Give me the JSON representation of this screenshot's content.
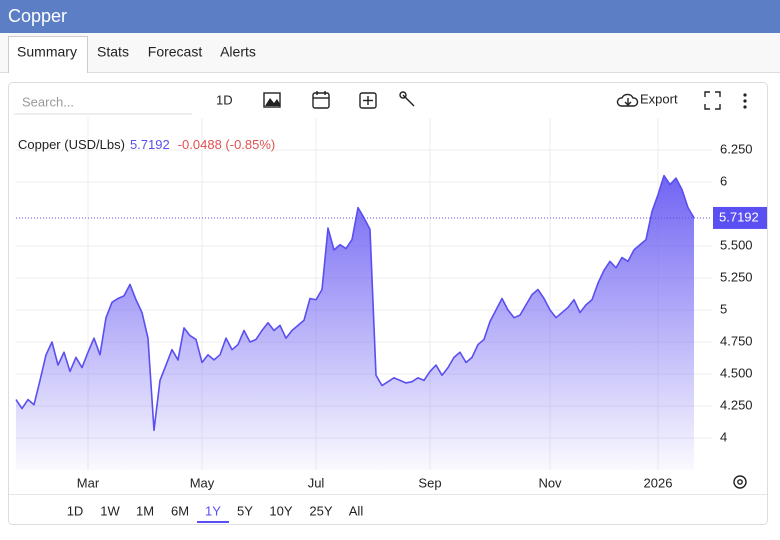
{
  "header": {
    "title": "Copper"
  },
  "tabs": [
    "Summary",
    "Stats",
    "Forecast",
    "Alerts"
  ],
  "active_tab": 0,
  "toolbar": {
    "search_placeholder": "Search...",
    "interval": "1D",
    "export": "Export"
  },
  "ranges": [
    "1D",
    "1W",
    "1M",
    "6M",
    "1Y",
    "5Y",
    "10Y",
    "25Y",
    "All"
  ],
  "active_range": 4,
  "chart_data": {
    "type": "area",
    "change_label": "-0.0488 (-0.85%)",
    "change_color": "#e05252",
    "categories": [
      null,
      null,
      null,
      null,
      null,
      null,
      null,
      null,
      null,
      null,
      null,
      null,
      "Mar",
      null,
      null,
      null,
      null,
      null,
      null,
      null,
      null,
      null,
      null,
      null,
      null,
      null,
      null,
      null,
      null,
      null,
      null,
      "May",
      null,
      null,
      null,
      null,
      null,
      null,
      null,
      null,
      null,
      null,
      null,
      null,
      null,
      null,
      null,
      null,
      null,
      null,
      "Jul",
      null,
      null,
      null,
      null,
      null,
      null,
      null,
      null,
      null,
      null,
      null,
      null,
      null,
      null,
      null,
      null,
      null,
      null,
      "Sep",
      null,
      null,
      null,
      null,
      null,
      null,
      null,
      null,
      null,
      null,
      null,
      null,
      null,
      null,
      null,
      null,
      null,
      null,
      null,
      "Nov",
      null,
      null,
      null,
      null,
      null,
      null,
      null,
      null,
      null,
      null,
      null,
      null,
      null,
      null,
      null,
      null,
      null,
      "2026",
      null,
      null,
      null,
      null,
      null,
      null
    ],
    "series": [
      {
        "name": "Copper (USD/Lbs)",
        "color": "#5a4ff0",
        "values": [
          4.3,
          4.23,
          4.3,
          4.26,
          4.45,
          4.65,
          4.75,
          4.57,
          4.67,
          4.52,
          4.63,
          4.55,
          4.67,
          4.78,
          4.65,
          4.94,
          5.06,
          5.09,
          5.11,
          5.2,
          5.08,
          4.98,
          4.78,
          4.06,
          4.45,
          4.57,
          4.69,
          4.61,
          4.86,
          4.8,
          4.77,
          4.59,
          4.65,
          4.61,
          4.65,
          4.78,
          4.69,
          4.73,
          4.84,
          4.75,
          4.77,
          4.84,
          4.9,
          4.84,
          4.88,
          4.78,
          4.84,
          4.88,
          4.92,
          5.09,
          5.08,
          5.16,
          5.64,
          5.47,
          5.51,
          5.48,
          5.55,
          5.8,
          5.72,
          5.63,
          4.49,
          4.41,
          4.44,
          4.47,
          4.45,
          4.43,
          4.44,
          4.47,
          4.45,
          4.52,
          4.57,
          4.49,
          4.55,
          4.63,
          4.67,
          4.59,
          4.63,
          4.73,
          4.77,
          4.91,
          5.0,
          5.09,
          5.0,
          4.94,
          4.96,
          5.04,
          5.12,
          5.16,
          5.09,
          5.0,
          4.94,
          4.98,
          5.02,
          5.08,
          4.98,
          5.04,
          5.08,
          5.21,
          5.31,
          5.38,
          5.33,
          5.41,
          5.38,
          5.47,
          5.51,
          5.55,
          5.77,
          5.9,
          6.05,
          5.98,
          6.03,
          5.94,
          5.8,
          5.7192
        ]
      }
    ],
    "ylim": [
      3.75,
      6.5
    ],
    "yticks": [
      4,
      {
        "value": 4.25,
        "label": "4.250"
      },
      {
        "value": 4.5,
        "label": "4.500"
      },
      {
        "value": 4.75,
        "label": "4.750"
      },
      5,
      {
        "value": 5.25,
        "label": "5.250"
      },
      {
        "value": 5.5,
        "label": "5.500"
      },
      6,
      {
        "value": 6.25,
        "label": "6.250"
      }
    ],
    "grid": true,
    "last_value_line": true
  }
}
